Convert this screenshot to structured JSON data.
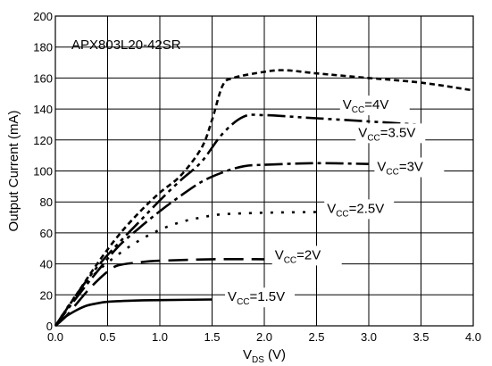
{
  "chart_data": {
    "type": "line",
    "title": "APX803L20-42SR",
    "xlabel": {
      "main": "V",
      "sub": "DS",
      "suffix": " (V)"
    },
    "ylabel": "Output Current (mA)",
    "xlim": [
      0,
      4.0
    ],
    "ylim": [
      0,
      200
    ],
    "xticks": [
      "0.0",
      "0.5",
      "1.0",
      "1.5",
      "2.0",
      "2.5",
      "3.0",
      "3.5",
      "4.0"
    ],
    "yticks": [
      "0",
      "20",
      "40",
      "60",
      "80",
      "100",
      "120",
      "140",
      "160",
      "180",
      "200"
    ],
    "grid": true,
    "series": [
      {
        "name": "V_CC=1.5V",
        "label_main": "V",
        "label_sub": "CC",
        "label_suffix": "=1.5V",
        "label_at": [
          1.65,
          16
        ],
        "dash": "",
        "points": [
          [
            0,
            0
          ],
          [
            0.05,
            3
          ],
          [
            0.1,
            6
          ],
          [
            0.2,
            10
          ],
          [
            0.3,
            13
          ],
          [
            0.4,
            14.5
          ],
          [
            0.5,
            15.5
          ],
          [
            0.7,
            16.2
          ],
          [
            1.0,
            16.6
          ],
          [
            1.5,
            17
          ]
        ]
      },
      {
        "name": "V_CC=2V",
        "label_main": "V",
        "label_sub": "CC",
        "label_suffix": "=2V",
        "label_at": [
          2.1,
          43
        ],
        "dash": "22 9",
        "points": [
          [
            0,
            0
          ],
          [
            0.1,
            6
          ],
          [
            0.2,
            14
          ],
          [
            0.3,
            22
          ],
          [
            0.4,
            29
          ],
          [
            0.5,
            35
          ],
          [
            0.6,
            39
          ],
          [
            0.8,
            41
          ],
          [
            1.0,
            42
          ],
          [
            1.5,
            43
          ],
          [
            2.0,
            43
          ]
        ]
      },
      {
        "name": "V_CC=2.5V",
        "label_main": "V",
        "label_sub": "CC",
        "label_suffix": "=2.5V",
        "label_at": [
          2.6,
          73
        ],
        "dash": "3 9",
        "points": [
          [
            0,
            0
          ],
          [
            0.2,
            20
          ],
          [
            0.4,
            35
          ],
          [
            0.6,
            46
          ],
          [
            0.8,
            55
          ],
          [
            1.0,
            62
          ],
          [
            1.2,
            67
          ],
          [
            1.4,
            70
          ],
          [
            1.6,
            72
          ],
          [
            2.0,
            73
          ],
          [
            2.5,
            73.5
          ]
        ]
      },
      {
        "name": "V_CC=3V",
        "label_main": "V",
        "label_sub": "CC",
        "label_suffix": "=3V",
        "label_at": [
          3.08,
          100
        ],
        "dash": "20 5 4 5",
        "points": [
          [
            0,
            0
          ],
          [
            0.2,
            18
          ],
          [
            0.4,
            35
          ],
          [
            0.6,
            51
          ],
          [
            0.8,
            63
          ],
          [
            1.0,
            74
          ],
          [
            1.2,
            84
          ],
          [
            1.4,
            93
          ],
          [
            1.6,
            99
          ],
          [
            1.8,
            103
          ],
          [
            2.0,
            104
          ],
          [
            2.5,
            105
          ],
          [
            3.0,
            104.5
          ]
        ]
      },
      {
        "name": "V_CC=3.5V",
        "label_main": "V",
        "label_sub": "CC",
        "label_suffix": "=3.5V",
        "label_at": [
          2.9,
          122
        ],
        "dash": "20 5 4 5 4 5",
        "points": [
          [
            0,
            0
          ],
          [
            0.2,
            20
          ],
          [
            0.4,
            38
          ],
          [
            0.6,
            53
          ],
          [
            0.8,
            67
          ],
          [
            1.0,
            81
          ],
          [
            1.2,
            94
          ],
          [
            1.4,
            106
          ],
          [
            1.6,
            124
          ],
          [
            1.8,
            135
          ],
          [
            2.0,
            136
          ],
          [
            2.5,
            134
          ],
          [
            3.0,
            132
          ],
          [
            3.45,
            130
          ]
        ]
      },
      {
        "name": "V_CC=4V",
        "label_main": "V",
        "label_sub": "CC",
        "label_suffix": "=4V",
        "label_at": [
          2.75,
          140
        ],
        "dash": "6 4",
        "points": [
          [
            0,
            0
          ],
          [
            0.2,
            20
          ],
          [
            0.4,
            40
          ],
          [
            0.6,
            58
          ],
          [
            0.8,
            73
          ],
          [
            1.0,
            86
          ],
          [
            1.2,
            97
          ],
          [
            1.4,
            115
          ],
          [
            1.5,
            133
          ],
          [
            1.6,
            155
          ],
          [
            1.7,
            160
          ],
          [
            2.0,
            164
          ],
          [
            2.2,
            165
          ],
          [
            2.5,
            163
          ],
          [
            3.0,
            160
          ],
          [
            3.5,
            157
          ],
          [
            4.0,
            152
          ]
        ]
      }
    ]
  }
}
